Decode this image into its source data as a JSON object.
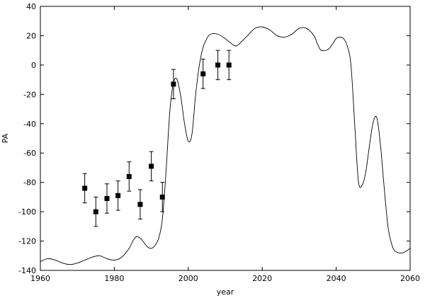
{
  "chart_data": {
    "type": "scatter",
    "xlabel": "year",
    "ylabel": "PA",
    "xlim": [
      1960,
      2060
    ],
    "ylim": [
      -140,
      40
    ],
    "x_ticks": [
      1960,
      1980,
      2000,
      2020,
      2040,
      2060
    ],
    "y_ticks": [
      -140,
      -120,
      -100,
      -80,
      -60,
      -40,
      -20,
      0,
      20,
      40
    ],
    "x_tick_labels": [
      "1960",
      "1980",
      "2000",
      "2020",
      "2040",
      "2060"
    ],
    "y_tick_labels": [
      "-140",
      "-120",
      "-100",
      "-80",
      "-60",
      "-40",
      "-20",
      "0",
      "20",
      "40"
    ],
    "grid": false,
    "series": [
      {
        "kind": "scatter_errorbar",
        "marker": "square",
        "points": [
          {
            "x": 1972,
            "y": -84,
            "err": 10
          },
          {
            "x": 1975,
            "y": -100,
            "err": 10
          },
          {
            "x": 1978,
            "y": -91,
            "err": 10
          },
          {
            "x": 1981,
            "y": -89,
            "err": 10
          },
          {
            "x": 1984,
            "y": -76,
            "err": 10
          },
          {
            "x": 1987,
            "y": -95,
            "err": 10
          },
          {
            "x": 1990,
            "y": -69,
            "err": 10
          },
          {
            "x": 1993,
            "y": -90,
            "err": 10
          },
          {
            "x": 1996,
            "y": -13,
            "err": 10
          },
          {
            "x": 2004,
            "y": -6,
            "err": 10
          },
          {
            "x": 2008,
            "y": 0,
            "err": 10
          },
          {
            "x": 2011,
            "y": 0,
            "err": 10
          }
        ]
      },
      {
        "kind": "line",
        "x": [
          1960,
          1962,
          1964,
          1966,
          1968,
          1970,
          1972,
          1974,
          1976,
          1978,
          1980,
          1982,
          1984,
          1985,
          1986,
          1987,
          1988,
          1989,
          1990,
          1991,
          1992,
          1993,
          1994,
          1995,
          1996,
          1997,
          1998,
          1999,
          2000,
          2001,
          2002,
          2003,
          2004,
          2005,
          2006,
          2008,
          2010,
          2012,
          2013,
          2014,
          2016,
          2018,
          2020,
          2022,
          2023,
          2024,
          2026,
          2028,
          2030,
          2032,
          2034,
          2035,
          2036,
          2038,
          2040,
          2041,
          2042,
          2043,
          2044,
          2045,
          2046,
          2047,
          2048,
          2049,
          2050,
          2051,
          2052,
          2053,
          2054,
          2055,
          2056,
          2058,
          2060
        ],
        "y": [
          -134,
          -132,
          -133,
          -135,
          -136,
          -135,
          -133,
          -131,
          -130,
          -132,
          -133,
          -131,
          -125,
          -120,
          -117,
          -118,
          -121,
          -124,
          -125,
          -123,
          -118,
          -105,
          -72,
          -32,
          -12,
          -10,
          -22,
          -40,
          -52,
          -47,
          -20,
          0,
          12,
          18,
          21,
          21,
          18,
          14,
          13,
          15,
          20,
          25,
          26,
          24,
          22,
          20,
          19,
          21,
          25,
          25,
          20,
          14,
          10,
          11,
          18,
          19,
          18,
          13,
          0,
          -40,
          -79,
          -82,
          -73,
          -55,
          -39,
          -36,
          -55,
          -84,
          -110,
          -122,
          -127,
          -128,
          -125
        ]
      }
    ]
  }
}
